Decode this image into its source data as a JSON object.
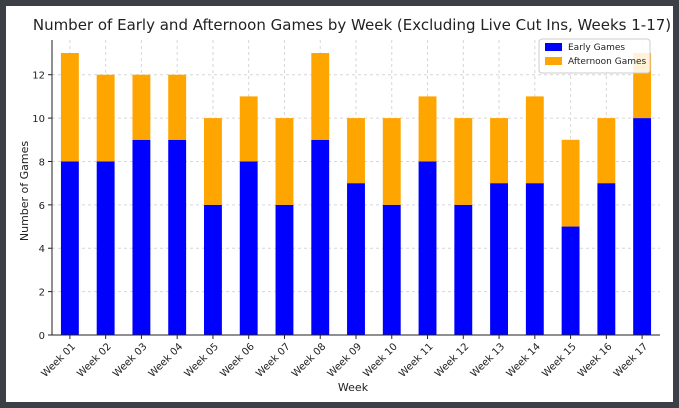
{
  "chart_data": {
    "type": "bar",
    "stacked": true,
    "title": "Number of Early and Afternoon Games by Week (Excluding Live Cut Ins, Weeks 1-17)",
    "xlabel": "Week",
    "ylabel": "Number of Games",
    "ylim": [
      0,
      13.6
    ],
    "yticks": [
      0,
      2,
      4,
      6,
      8,
      10,
      12
    ],
    "grid": true,
    "legend_position": "upper-right",
    "categories": [
      "Week 01",
      "Week 02",
      "Week 03",
      "Week 04",
      "Week 05",
      "Week 06",
      "Week 07",
      "Week 08",
      "Week 09",
      "Week 10",
      "Week 11",
      "Week 12",
      "Week 13",
      "Week 14",
      "Week 15",
      "Week 16",
      "Week 17"
    ],
    "series": [
      {
        "name": "Early Games",
        "color": "#0000ff",
        "values": [
          8,
          8,
          9,
          9,
          6,
          8,
          6,
          9,
          7,
          6,
          8,
          6,
          7,
          7,
          5,
          7,
          10
        ]
      },
      {
        "name": "Afternoon Games",
        "color": "#ffa500",
        "values": [
          5,
          4,
          3,
          3,
          4,
          3,
          4,
          4,
          3,
          4,
          3,
          4,
          3,
          4,
          4,
          3,
          3
        ]
      }
    ]
  }
}
